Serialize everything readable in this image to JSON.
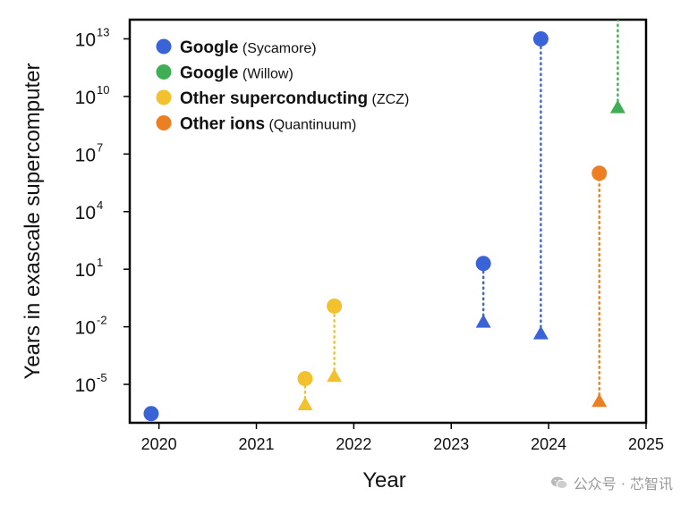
{
  "chart_data": {
    "type": "scatter",
    "title": "",
    "xlabel": "Year",
    "ylabel": "Years in exascale supercomputer",
    "x_scale": "linear",
    "y_scale": "log",
    "xlim": [
      2019.7,
      2025.0
    ],
    "ylim": [
      1e-07,
      100000000000000.0
    ],
    "x_ticks": [
      2020,
      2021,
      2022,
      2023,
      2024,
      2025
    ],
    "x_tick_labels": [
      "2020",
      "2021",
      "2022",
      "2023",
      "2024",
      "2025"
    ],
    "y_tick_exponents": [
      -5,
      -2,
      1,
      4,
      7,
      10,
      13
    ],
    "legend_position": "top-left",
    "grid": false,
    "colors": {
      "google_sycamore": "#3b63d8",
      "google_willow": "#3fae55",
      "other_superconducting": "#f2c12e",
      "other_ions": "#ec7f22"
    },
    "series": [
      {
        "name": "Google",
        "name_detail": "(Sycamore)",
        "color": "#3b63d8",
        "points": [
          {
            "x": 2019.92,
            "y": 3e-07,
            "marker": "circle"
          },
          {
            "x": 2023.33,
            "y": 20,
            "marker": "circle"
          },
          {
            "x": 2023.33,
            "y": 0.02,
            "marker": "triangle"
          },
          {
            "x": 2023.92,
            "y": 10000000000000.0,
            "marker": "circle"
          },
          {
            "x": 2023.92,
            "y": 0.005,
            "marker": "triangle"
          }
        ],
        "connections": [
          {
            "x": 2023.33,
            "from": 0.02,
            "to": 20
          },
          {
            "x": 2023.92,
            "from": 0.005,
            "to": 10000000000000.0
          }
        ]
      },
      {
        "name": "Google",
        "name_detail": "(Willow)",
        "color": "#3fae55",
        "points": [
          {
            "x": 2024.71,
            "y": 3000000000.0,
            "marker": "triangle"
          }
        ],
        "connections": [
          {
            "x": 2024.71,
            "from": 3000000000.0,
            "to": 100000000000000.0
          }
        ]
      },
      {
        "name": "Other superconducting",
        "name_detail": "(ZCZ)",
        "color": "#f2c12e",
        "points": [
          {
            "x": 2021.5,
            "y": 2e-05,
            "marker": "circle"
          },
          {
            "x": 2021.5,
            "y": 1e-06,
            "marker": "triangle"
          },
          {
            "x": 2021.8,
            "y": 0.12,
            "marker": "circle"
          },
          {
            "x": 2021.8,
            "y": 3e-05,
            "marker": "triangle"
          }
        ],
        "connections": [
          {
            "x": 2021.5,
            "from": 1e-06,
            "to": 2e-05
          },
          {
            "x": 2021.8,
            "from": 3e-05,
            "to": 0.12
          }
        ]
      },
      {
        "name": "Other ions",
        "name_detail": "(Quantinuum)",
        "color": "#ec7f22",
        "points": [
          {
            "x": 2024.52,
            "y": 1000000.0,
            "marker": "circle"
          },
          {
            "x": 2024.52,
            "y": 1.5e-06,
            "marker": "triangle"
          }
        ],
        "connections": [
          {
            "x": 2024.52,
            "from": 1.5e-06,
            "to": 1000000.0
          }
        ]
      }
    ]
  },
  "watermark": {
    "text": "公众号 · 芯智讯",
    "icon": "wechat-icon"
  }
}
